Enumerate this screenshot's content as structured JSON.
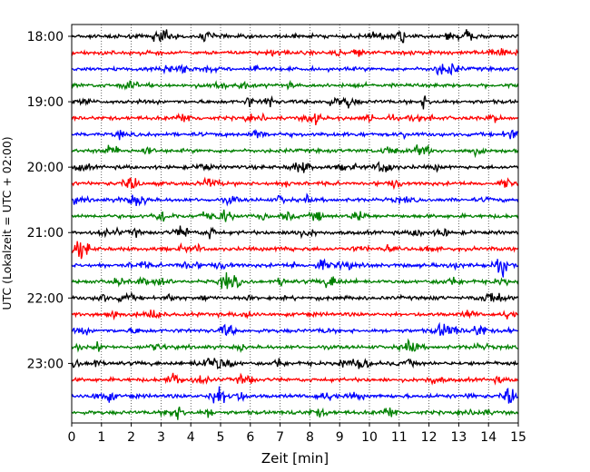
{
  "chart_data": {
    "type": "line",
    "title": "",
    "xlabel": "Zeit  [min]",
    "ylabel": "UTC (Lokalzeit = UTC + 02:00)",
    "xlim": [
      0,
      15
    ],
    "x_ticks": [
      "0",
      "1",
      "2",
      "3",
      "4",
      "5",
      "6",
      "7",
      "8",
      "9",
      "10",
      "11",
      "12",
      "13",
      "14",
      "15"
    ],
    "y_tick_labels": [
      "18:00",
      "19:00",
      "20:00",
      "21:00",
      "22:00",
      "23:00"
    ],
    "grid": "vertical dotted lines at each minute",
    "trace_count": 24,
    "trace_interval_min": 15,
    "first_trace": "18:00",
    "last_trace": "23:45",
    "color_cycle": [
      "#000000",
      "#ff0000",
      "#0000ff",
      "#008000"
    ],
    "traces": [
      {
        "start": "18:00",
        "color": "#000000"
      },
      {
        "start": "18:15",
        "color": "#ff0000"
      },
      {
        "start": "18:30",
        "color": "#0000ff"
      },
      {
        "start": "18:45",
        "color": "#008000"
      },
      {
        "start": "19:00",
        "color": "#000000"
      },
      {
        "start": "19:15",
        "color": "#ff0000"
      },
      {
        "start": "19:30",
        "color": "#0000ff"
      },
      {
        "start": "19:45",
        "color": "#008000"
      },
      {
        "start": "20:00",
        "color": "#000000"
      },
      {
        "start": "20:15",
        "color": "#ff0000"
      },
      {
        "start": "20:30",
        "color": "#0000ff"
      },
      {
        "start": "20:45",
        "color": "#008000"
      },
      {
        "start": "21:00",
        "color": "#000000"
      },
      {
        "start": "21:15",
        "color": "#ff0000"
      },
      {
        "start": "21:30",
        "color": "#0000ff"
      },
      {
        "start": "21:45",
        "color": "#008000"
      },
      {
        "start": "22:00",
        "color": "#000000"
      },
      {
        "start": "22:15",
        "color": "#ff0000"
      },
      {
        "start": "22:30",
        "color": "#0000ff"
      },
      {
        "start": "22:45",
        "color": "#008000"
      },
      {
        "start": "23:00",
        "color": "#000000"
      },
      {
        "start": "23:15",
        "color": "#ff0000"
      },
      {
        "start": "23:30",
        "color": "#0000ff"
      },
      {
        "start": "23:45",
        "color": "#008000"
      }
    ]
  }
}
